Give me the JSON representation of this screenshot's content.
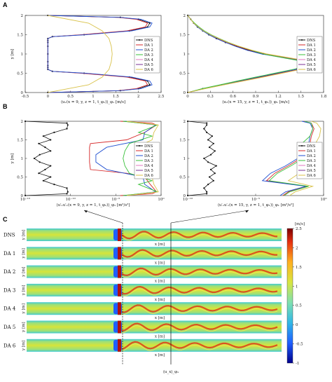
{
  "panels": {
    "a": "A",
    "b": "B",
    "c": "C"
  },
  "colors": {
    "DNS": "#111111",
    "DA 1": "#d62728",
    "DA 2": "#1f4fd1",
    "DA 3": "#39c13a",
    "DA 4": "#e377c2",
    "DA 5": "#7b3294",
    "DA 6": "#d9c24a"
  },
  "chart_data": [
    {
      "id": "A1",
      "type": "line",
      "xlim": [
        -0.5,
        2.5
      ],
      "ylim": [
        0,
        2
      ],
      "xticks": [
        "-0.5",
        "0",
        "0.5",
        "1",
        "1.5",
        "2",
        "2.5"
      ],
      "yticks": [
        "0",
        "0.5",
        "1",
        "1.5",
        "2"
      ],
      "xlabel": "⟨uₓ(x = 9, y, z = 1, t_φ₁)⟩_φ₁ [m/s]",
      "ylabel": "y [m]",
      "legend": [
        "DNS",
        "DA 1",
        "DA 2",
        "DA 3",
        "DA 4",
        "DA 5",
        "DA 6"
      ],
      "series": [
        {
          "name": "DNS",
          "y": [
            0,
            0.05,
            0.1,
            0.2,
            0.3,
            0.4,
            0.5,
            0.55,
            0.6,
            0.65,
            0.7,
            0.8,
            1.0,
            1.2,
            1.3,
            1.35,
            1.4,
            1.45,
            1.5,
            1.6,
            1.7,
            1.8,
            1.9,
            1.95,
            2.0
          ],
          "x": [
            0,
            1.6,
            2.0,
            2.25,
            2.2,
            1.8,
            0.8,
            0.1,
            0.0,
            0.0,
            0.0,
            0.0,
            0.0,
            0.0,
            0.0,
            0.0,
            0.0,
            0.1,
            0.8,
            1.8,
            2.2,
            2.25,
            2.0,
            1.6,
            0
          ]
        },
        {
          "name": "DA 1",
          "y": [
            0,
            0.05,
            0.1,
            0.2,
            0.3,
            0.4,
            0.5,
            0.55,
            0.6,
            0.65,
            0.7,
            0.8,
            1.0,
            1.2,
            1.3,
            1.35,
            1.4,
            1.45,
            1.5,
            1.6,
            1.7,
            1.8,
            1.9,
            1.95,
            2.0
          ],
          "x": [
            0,
            1.55,
            1.95,
            2.2,
            2.15,
            1.75,
            0.75,
            0.1,
            0.0,
            0.0,
            0.0,
            0.0,
            0.0,
            0.0,
            0.0,
            0.0,
            0.0,
            0.1,
            0.75,
            1.75,
            2.15,
            2.2,
            1.95,
            1.55,
            0
          ]
        },
        {
          "name": "DA 2",
          "y": [
            0,
            0.05,
            0.1,
            0.2,
            0.3,
            0.4,
            0.5,
            0.55,
            0.6,
            0.65,
            0.7,
            0.8,
            1.0,
            1.2,
            1.3,
            1.35,
            1.4,
            1.45,
            1.5,
            1.6,
            1.7,
            1.8,
            1.9,
            1.95,
            2.0
          ],
          "x": [
            0,
            1.6,
            2.05,
            2.3,
            2.25,
            1.85,
            0.85,
            0.1,
            0.0,
            0.0,
            0.0,
            0.0,
            0.0,
            0.0,
            0.0,
            0.0,
            0.0,
            0.1,
            0.85,
            1.85,
            2.25,
            2.3,
            2.05,
            1.6,
            0
          ]
        },
        {
          "name": "DA 6",
          "y": [
            0,
            0.2,
            0.4,
            0.6,
            0.8,
            1.0,
            1.2,
            1.4,
            1.6,
            1.8,
            2.0
          ],
          "x": [
            0,
            0.9,
            1.2,
            1.35,
            1.4,
            1.42,
            1.4,
            1.35,
            1.2,
            0.9,
            0
          ]
        }
      ]
    },
    {
      "id": "A2",
      "type": "line",
      "xlim": [
        0,
        1.8
      ],
      "ylim": [
        0,
        2
      ],
      "xticks": [
        "0",
        "0.3",
        "0.6",
        "0.9",
        "1.2",
        "1.5",
        "1.8"
      ],
      "yticks": [
        "0",
        "0.5",
        "1",
        "1.5",
        "2"
      ],
      "xlabel": "⟨uₓ(x = 15, y, z = 1, t_φ₁)⟩_φ₁ [m/s]",
      "ylabel": "",
      "legend": [
        "DNS",
        "DA 1",
        "DA 2",
        "DA 3",
        "DA 4",
        "DA 5",
        "DA 6"
      ],
      "series": [
        {
          "name": "DNS",
          "y": [
            0,
            0.1,
            0.2,
            0.3,
            0.4,
            0.5,
            0.6,
            0.7,
            0.8,
            0.9,
            1.0,
            1.1,
            1.2,
            1.3,
            1.4,
            1.5,
            1.6,
            1.7,
            1.8,
            1.9,
            2.0
          ],
          "x": [
            0,
            0.2,
            0.45,
            0.7,
            0.95,
            1.2,
            1.45,
            1.62,
            1.6,
            1.3,
            1.0,
            0.8,
            0.65,
            0.5,
            0.38,
            0.28,
            0.2,
            0.13,
            0.08,
            0.04,
            0
          ]
        },
        {
          "name": "DA 1",
          "y": [
            0,
            0.1,
            0.2,
            0.3,
            0.4,
            0.5,
            0.6,
            0.7,
            0.8,
            0.9,
            1.0,
            1.1,
            1.2,
            1.3,
            1.4,
            1.5,
            1.6,
            1.7,
            1.8,
            1.9,
            2.0
          ],
          "x": [
            0,
            0.22,
            0.47,
            0.72,
            0.98,
            1.22,
            1.47,
            1.64,
            1.62,
            1.32,
            1.02,
            0.82,
            0.66,
            0.52,
            0.4,
            0.3,
            0.21,
            0.14,
            0.08,
            0.04,
            0
          ]
        },
        {
          "name": "DA 2",
          "y": [
            0,
            0.1,
            0.2,
            0.3,
            0.4,
            0.5,
            0.6,
            0.7,
            0.8,
            0.9,
            1.0,
            1.1,
            1.2,
            1.3,
            1.4,
            1.5,
            1.6,
            1.7,
            1.8,
            1.9,
            2.0
          ],
          "x": [
            0,
            0.2,
            0.44,
            0.68,
            0.93,
            1.18,
            1.44,
            1.6,
            1.58,
            1.28,
            0.98,
            0.78,
            0.63,
            0.5,
            0.38,
            0.28,
            0.2,
            0.13,
            0.08,
            0.04,
            0
          ]
        },
        {
          "name": "DA 3",
          "y": [
            0,
            0.1,
            0.2,
            0.3,
            0.4,
            0.5,
            0.6,
            0.7,
            0.8,
            0.9,
            1.0,
            1.1,
            1.2,
            1.3,
            1.4,
            1.5,
            1.6,
            1.7,
            1.8,
            1.9,
            2.0
          ],
          "x": [
            0,
            0.19,
            0.43,
            0.66,
            0.9,
            1.15,
            1.4,
            1.57,
            1.55,
            1.27,
            1.0,
            0.84,
            0.68,
            0.54,
            0.42,
            0.31,
            0.22,
            0.15,
            0.09,
            0.04,
            0
          ]
        },
        {
          "name": "DA 6",
          "y": [
            0,
            0.1,
            0.2,
            0.3,
            0.4,
            0.5,
            0.6,
            0.7,
            0.8,
            0.9,
            1.0,
            1.1,
            1.2,
            1.3,
            1.4,
            1.5,
            1.6,
            1.7,
            1.8,
            1.9,
            2.0
          ],
          "x": [
            0,
            0.23,
            0.48,
            0.74,
            1.0,
            1.25,
            1.5,
            1.67,
            1.65,
            1.35,
            1.05,
            0.85,
            0.68,
            0.53,
            0.41,
            0.3,
            0.21,
            0.14,
            0.08,
            0.04,
            0
          ]
        }
      ]
    },
    {
      "id": "B1",
      "type": "line",
      "xscale": "log",
      "xlim": [
        -15,
        0
      ],
      "ylim": [
        0,
        2
      ],
      "xticks": [
        "10⁻¹⁵",
        "10⁻¹⁰",
        "10⁻⁵",
        "10⁰"
      ],
      "yticks": [
        "0",
        "0.5",
        "1",
        "1.5",
        "2"
      ],
      "xlabel": "⟨u′ₓu′ₓ(x = 9, y, z = 1, t_φ₁)⟩_φ₁ [m²/s²]",
      "ylabel": "y [m]",
      "legend": [
        "DNS",
        "DA 1",
        "DA 2",
        "DA 3",
        "DA 4",
        "DA 5",
        "DA 6"
      ],
      "series": [
        {
          "name": "DNS",
          "y": [
            0,
            0.05,
            0.1,
            0.2,
            0.3,
            0.4,
            0.5,
            0.6,
            0.7,
            0.8,
            0.9,
            1.0,
            1.1,
            1.2,
            1.3,
            1.4,
            1.5,
            1.6,
            1.7,
            1.8,
            1.9,
            1.95,
            2.0
          ],
          "logx": [
            -15,
            -10.4,
            -10.3,
            -10.4,
            -11.8,
            -13.0,
            -12.2,
            -13.5,
            -12.8,
            -12.2,
            -13.4,
            -14.0,
            -13.4,
            -12.2,
            -12.8,
            -13.5,
            -12.2,
            -13.0,
            -11.8,
            -10.4,
            -10.3,
            -10.4,
            -15
          ]
        },
        {
          "name": "DA 1",
          "y": [
            0,
            0.05,
            0.1,
            0.3,
            0.5,
            0.6,
            0.7,
            0.9,
            1.0,
            1.1,
            1.3,
            1.4,
            1.5,
            1.7,
            1.9,
            1.95,
            2.0
          ],
          "logx": [
            -4.5,
            -1.0,
            -0.5,
            -1.2,
            -1.8,
            -3.8,
            -7.8,
            -7.9,
            -7.9,
            -7.9,
            -7.9,
            -7.8,
            -3.8,
            -1.8,
            -0.5,
            -1.0,
            -4.5
          ]
        },
        {
          "name": "DA 2",
          "y": [
            0,
            0.1,
            0.3,
            0.5,
            0.7,
            0.9,
            1.1,
            1.3,
            1.5,
            1.7,
            1.9,
            2.0
          ],
          "logx": [
            -4.0,
            -0.6,
            -1.8,
            -2.0,
            -6.0,
            -7.2,
            -7.2,
            -6.0,
            -2.0,
            -1.8,
            -0.6,
            -4.0
          ]
        },
        {
          "name": "DA 3",
          "y": [
            0,
            0.1,
            0.3,
            0.4,
            0.6,
            0.8,
            1.0,
            1.2,
            1.4,
            1.6,
            1.7,
            1.9,
            2.0
          ],
          "logx": [
            -4.2,
            -0.4,
            -2.5,
            -1.0,
            -3.5,
            -4.0,
            -4.2,
            -4.0,
            -3.5,
            -1.0,
            -2.5,
            -0.4,
            -4.2
          ]
        },
        {
          "name": "DA 6",
          "y": [
            0,
            0.1,
            0.3,
            0.5,
            0.7,
            0.9,
            1.1,
            1.3,
            1.5,
            1.7,
            1.9,
            2.0
          ],
          "logx": [
            -3.8,
            -0.3,
            -0.8,
            -1.0,
            -2.8,
            -2.6,
            -2.6,
            -2.8,
            -1.0,
            -0.8,
            -0.3,
            -3.8
          ]
        }
      ]
    },
    {
      "id": "B2",
      "type": "line",
      "xscale": "log",
      "xlim": [
        -10,
        0
      ],
      "ylim": [
        0,
        2
      ],
      "xticks": [
        "10⁻¹⁰",
        "10⁻⁵",
        "10⁰"
      ],
      "yticks": [
        "0",
        "0.5",
        "1",
        "1.5",
        "2"
      ],
      "xlabel": "⟨u′ₓu′ₓ(x = 15, y, z = 1, t_φ₁)⟩_φ₁ [m²/s²]",
      "ylabel": "",
      "legend": [
        "DNS",
        "DA 1",
        "DA 2",
        "DA 3",
        "DA 4",
        "DA 5",
        "DA 6"
      ],
      "series": [
        {
          "name": "DNS",
          "y": [
            0,
            0.05,
            0.1,
            0.2,
            0.3,
            0.4,
            0.5,
            0.6,
            0.7,
            0.8,
            0.9,
            1.0,
            1.1,
            1.2,
            1.3,
            1.4,
            1.5,
            1.6,
            1.7,
            1.8,
            1.9,
            1.95,
            2.0
          ],
          "logx": [
            -10,
            -8.6,
            -8.6,
            -8.8,
            -8.5,
            -8.1,
            -8.4,
            -8.0,
            -8.3,
            -7.9,
            -8.5,
            -8.8,
            -8.3,
            -8.0,
            -8.4,
            -8.1,
            -8.5,
            -8.2,
            -8.6,
            -8.8,
            -8.6,
            -8.6,
            -10
          ]
        },
        {
          "name": "DA 1",
          "y": [
            0,
            0.1,
            0.25,
            0.4,
            0.6,
            0.8,
            1.0,
            1.2,
            1.4,
            1.6,
            1.8,
            1.95,
            2.0
          ],
          "logx": [
            -3.0,
            -2.6,
            -1.2,
            -4.2,
            -3.6,
            -2.6,
            -1.7,
            -1.3,
            -1.0,
            -0.9,
            -0.7,
            -0.9,
            -1.5
          ]
        },
        {
          "name": "DA 2",
          "y": [
            0,
            0.1,
            0.25,
            0.4,
            0.6,
            0.8,
            1.0,
            1.2,
            1.4,
            1.6,
            1.8,
            1.95,
            2.0
          ],
          "logx": [
            -3.2,
            -2.8,
            -1.3,
            -4.5,
            -3.9,
            -2.8,
            -1.9,
            -1.4,
            -1.1,
            -1.0,
            -0.8,
            -1.0,
            -1.6
          ]
        },
        {
          "name": "DA 3",
          "y": [
            0,
            0.1,
            0.25,
            0.4,
            0.6,
            0.8,
            1.0,
            1.2,
            1.4,
            1.6,
            1.8,
            1.95,
            2.0
          ],
          "logx": [
            -2.9,
            -2.5,
            -1.1,
            -4.0,
            -3.4,
            -2.4,
            -1.5,
            -1.4,
            -1.6,
            -1.0,
            -0.8,
            -0.9,
            -1.4
          ]
        },
        {
          "name": "DA 6",
          "y": [
            0,
            0.1,
            0.25,
            0.4,
            0.6,
            0.8,
            1.0,
            1.2,
            1.4,
            1.6,
            1.8,
            1.95,
            2.0
          ],
          "logx": [
            -2.5,
            -2.1,
            -0.8,
            -2.6,
            -1.8,
            -0.9,
            -0.4,
            -0.8,
            -0.6,
            -0.3,
            -0.2,
            -0.5,
            -0.9
          ]
        }
      ]
    },
    {
      "id": "C",
      "type": "heatmap",
      "rows": [
        "DNS",
        "DA 1",
        "DA 2",
        "DA 3",
        "DA 4",
        "DA 5",
        "DA 6"
      ],
      "xlabel": "x [m]",
      "ylabel": "y [m]",
      "colorbar_label": "[m/s]",
      "colorbar_ticks": [
        "-1",
        "-0.5",
        "0",
        "0.5",
        "1",
        "1.5",
        "2",
        "2.5"
      ],
      "vlim": [
        -1,
        2.5
      ],
      "bottom_label": "⟨u_x⟩_φ₁"
    }
  ]
}
